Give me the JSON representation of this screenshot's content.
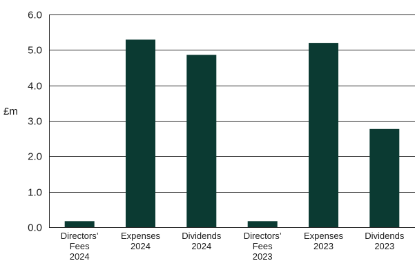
{
  "chart_data": {
    "type": "bar",
    "title": "",
    "xlabel": "",
    "ylabel": "£m",
    "ylim": [
      0,
      6
    ],
    "yticks": [
      "0.0",
      "1.0",
      "2.0",
      "3.0",
      "4.0",
      "5.0",
      "6.0"
    ],
    "grid": true,
    "legend": "none",
    "bar_color": "#0b3a32",
    "categories": [
      "Directors' Fees 2024",
      "Expenses 2024",
      "Dividends 2024",
      "Directors' Fees 2023",
      "Expenses 2023",
      "Dividends 2023"
    ],
    "category_lines": [
      [
        "Directors’",
        "Fees",
        "2024"
      ],
      [
        "Expenses",
        "2024"
      ],
      [
        "Dividends",
        "2024"
      ],
      [
        "Directors’",
        "Fees",
        "2023"
      ],
      [
        "Expenses",
        "2023"
      ],
      [
        "Dividends",
        "2023"
      ]
    ],
    "values": [
      0.17,
      5.29,
      4.86,
      0.17,
      5.2,
      2.77
    ]
  }
}
